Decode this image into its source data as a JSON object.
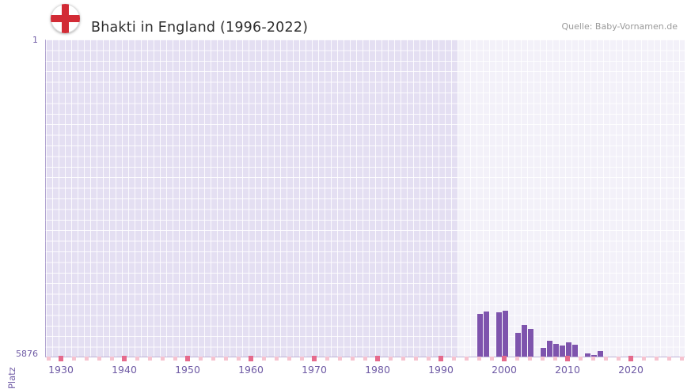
{
  "header": {
    "title": "Bhakti in England (1996-2022)",
    "source": "Quelle: Baby-Vornamen.de"
  },
  "colors": {
    "plot_bg": "#e4dff2",
    "grid": "rgba(255,255,255,0.85)",
    "highlight_overlay": "rgba(255,255,255,0.55)",
    "bar": "#7e54ad",
    "axis_text": "#6f5ba5",
    "axis_line": "rgba(101,74,158,0.4)",
    "tick_light": "#f6c3d0",
    "tick_dark": "#e66a8c",
    "title": "#2e2e2e",
    "source": "#9a9a9a",
    "flag_red": "#d22b35"
  },
  "chart_data": {
    "type": "bar",
    "title": "Bhakti in England (1996-2022)",
    "xlabel": "",
    "ylabel": "Platz",
    "y_axis": {
      "min": 1,
      "max": 5876,
      "inverted": true,
      "tick_labels": [
        "1",
        "5876"
      ]
    },
    "x_axis": {
      "range": [
        1928,
        2029
      ],
      "tick_years": [
        1930,
        1940,
        1950,
        1960,
        1970,
        1980,
        1990,
        2000,
        2010,
        2020
      ]
    },
    "highlight_region": {
      "from_year": 1993,
      "to_year": 2029
    },
    "baseline_markers": {
      "every_years": 2,
      "emphasized_every": 10
    },
    "grid": true,
    "legend": false,
    "points": [
      {
        "year": 1996,
        "rank": 5080
      },
      {
        "year": 1997,
        "rank": 5040
      },
      {
        "year": 1999,
        "rank": 5060
      },
      {
        "year": 2000,
        "rank": 5030
      },
      {
        "year": 2002,
        "rank": 5440
      },
      {
        "year": 2003,
        "rank": 5290
      },
      {
        "year": 2004,
        "rank": 5360
      },
      {
        "year": 2006,
        "rank": 5720
      },
      {
        "year": 2007,
        "rank": 5580
      },
      {
        "year": 2008,
        "rank": 5640
      },
      {
        "year": 2009,
        "rank": 5670
      },
      {
        "year": 2010,
        "rank": 5610
      },
      {
        "year": 2011,
        "rank": 5660
      },
      {
        "year": 2013,
        "rank": 5820
      },
      {
        "year": 2014,
        "rank": 5840
      },
      {
        "year": 2015,
        "rank": 5770
      }
    ]
  }
}
